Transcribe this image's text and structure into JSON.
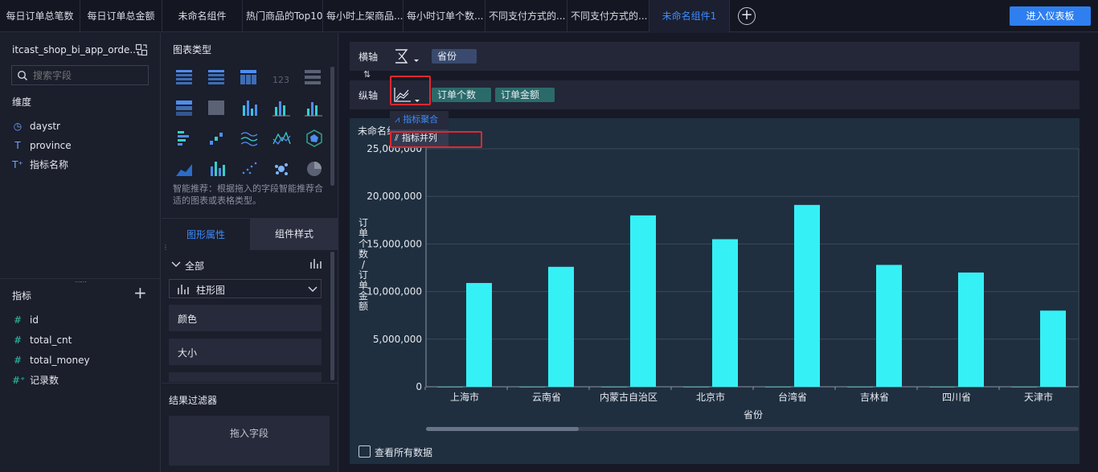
{
  "tabs": [
    {
      "label": "每日订单总笔数"
    },
    {
      "label": "每日订单总金额"
    },
    {
      "label": "未命名组件"
    },
    {
      "label": "热门商品的Top10"
    },
    {
      "label": "每小时上架商品..."
    },
    {
      "label": "每小时订单个数..."
    },
    {
      "label": "不同支付方式的..."
    },
    {
      "label": "不同支付方式的..."
    },
    {
      "label": "未命名组件1"
    }
  ],
  "enter_dashboard_label": "进入仪表板",
  "left": {
    "dataset": "itcast_shop_bi_app_orde...",
    "search_placeholder": "搜索字段",
    "dimensions_title": "维度",
    "dimensions": [
      {
        "icon": "clock-icon",
        "glyph": "◷",
        "name": "daystr"
      },
      {
        "icon": "text-type-icon",
        "glyph": "T",
        "name": "province"
      },
      {
        "icon": "text-type-plus-icon",
        "glyph": "T⁺",
        "name": "指标名称"
      }
    ],
    "measures_title": "指标",
    "measures": [
      {
        "icon": "number-icon",
        "glyph": "#",
        "name": "id"
      },
      {
        "icon": "number-icon",
        "glyph": "#",
        "name": "total_cnt"
      },
      {
        "icon": "number-icon",
        "glyph": "#",
        "name": "total_money"
      },
      {
        "icon": "number-plus-icon",
        "glyph": "#⁺",
        "name": "记录数"
      }
    ]
  },
  "mid": {
    "chart_types_title": "图表类型",
    "smart_tip": "智能推荐：根据拖入的字段智能推荐合适的图表或表格类型。",
    "tab_graphic": "图形属性",
    "tab_style": "组件样式",
    "all_label": "全部",
    "chart_select_value": "柱形图",
    "color_label": "颜色",
    "size_label": "大小",
    "filter_title": "结果过滤器",
    "drag_field": "拖入字段"
  },
  "axes": {
    "x_label": "横轴",
    "x_field": "省份",
    "y_label": "纵轴",
    "y_fields": [
      "订单个数",
      "订单金额"
    ],
    "menu": [
      "指标聚合",
      "指标并列"
    ]
  },
  "chart_title": "未命名组",
  "show_all_data": "查看所有数据",
  "colors": {
    "accent": "#2f7ff0",
    "bar": "#35f0f5",
    "highlight": "#e0282e"
  },
  "chart_data": {
    "type": "bar",
    "categories": [
      "上海市",
      "云南省",
      "内蒙古自治区",
      "北京市",
      "台湾省",
      "吉林省",
      "四川省",
      "天津市"
    ],
    "series": [
      {
        "name": "订单个数",
        "values": [
          2000,
          2000,
          2000,
          2000,
          2000,
          2000,
          2000,
          2000
        ]
      },
      {
        "name": "订单金额",
        "values": [
          10900000,
          12600000,
          18000000,
          15500000,
          19100000,
          12800000,
          12000000,
          8000000
        ]
      }
    ],
    "y_ticks": [
      "25,000,000",
      "20,000,000",
      "15,000,000",
      "10,000,000",
      "5,000,000",
      "0"
    ],
    "xlabel": "省份",
    "ylabel": "订单个数/订单金额",
    "ylim": [
      0,
      25000000
    ]
  }
}
